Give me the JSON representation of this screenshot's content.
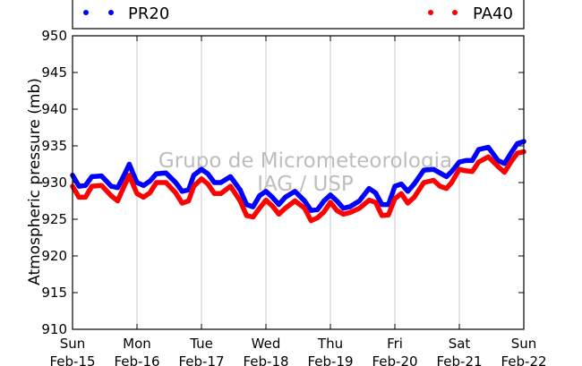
{
  "chart_data": {
    "type": "line",
    "ylabel": "Atmospheric pressure (mb)",
    "ylim": [
      910,
      950
    ],
    "yticks": [
      910,
      915,
      920,
      925,
      930,
      935,
      940,
      945,
      950
    ],
    "xlim": [
      0,
      7
    ],
    "x_ticks": [
      {
        "x": 0,
        "day": "Sun",
        "date": "Feb-15"
      },
      {
        "x": 1,
        "day": "Mon",
        "date": "Feb-16"
      },
      {
        "x": 2,
        "day": "Tue",
        "date": "Feb-17"
      },
      {
        "x": 3,
        "day": "Wed",
        "date": "Feb-18"
      },
      {
        "x": 4,
        "day": "Thu",
        "date": "Feb-19"
      },
      {
        "x": 5,
        "day": "Fri",
        "date": "Feb-20"
      },
      {
        "x": 6,
        "day": "Sat",
        "date": "Feb-21"
      },
      {
        "x": 7,
        "day": "Sun",
        "date": "Feb-22"
      }
    ],
    "grid": "vertical",
    "legend_placement": "top",
    "watermark": [
      "Grupo de Micrometeorologia",
      "IAG / USP"
    ],
    "series": [
      {
        "name": "PR20",
        "color": "#0000ff",
        "x": [
          0,
          0.1,
          0.2,
          0.3,
          0.45,
          0.6,
          0.7,
          0.8,
          0.88,
          0.95,
          1.0,
          1.1,
          1.2,
          1.3,
          1.45,
          1.6,
          1.7,
          1.8,
          1.88,
          2.0,
          2.1,
          2.2,
          2.3,
          2.45,
          2.6,
          2.7,
          2.8,
          2.9,
          3.0,
          3.1,
          3.2,
          3.3,
          3.45,
          3.6,
          3.7,
          3.8,
          3.9,
          4.0,
          4.1,
          4.2,
          4.3,
          4.45,
          4.6,
          4.7,
          4.8,
          4.9,
          5.0,
          5.1,
          5.2,
          5.3,
          5.45,
          5.6,
          5.7,
          5.8,
          5.88,
          6.0,
          6.1,
          6.2,
          6.3,
          6.45,
          6.6,
          6.7,
          6.8,
          6.9,
          7.0
        ],
        "values": [
          931.0,
          929.5,
          929.6,
          930.8,
          930.9,
          929.5,
          929.3,
          931.0,
          932.5,
          931.0,
          930.0,
          929.6,
          930.2,
          931.2,
          931.3,
          930.0,
          928.8,
          929.0,
          931.0,
          931.8,
          931.2,
          930.0,
          930.0,
          930.8,
          929.0,
          927.0,
          926.7,
          928.2,
          928.8,
          928.0,
          927.0,
          928.0,
          928.8,
          927.5,
          926.2,
          926.3,
          927.5,
          928.3,
          927.5,
          926.5,
          926.7,
          927.5,
          929.2,
          928.6,
          927.0,
          927.0,
          929.5,
          929.8,
          928.8,
          929.8,
          931.7,
          931.8,
          931.3,
          930.8,
          931.5,
          932.8,
          933.0,
          933.0,
          934.5,
          934.8,
          933.0,
          932.6,
          934.0,
          935.3,
          935.6
        ]
      },
      {
        "name": "PA40",
        "color": "#ff0000",
        "x": [
          0,
          0.1,
          0.2,
          0.3,
          0.45,
          0.6,
          0.7,
          0.8,
          0.88,
          0.95,
          1.0,
          1.1,
          1.2,
          1.3,
          1.45,
          1.6,
          1.7,
          1.8,
          1.88,
          2.0,
          2.1,
          2.2,
          2.3,
          2.45,
          2.6,
          2.7,
          2.8,
          2.9,
          3.0,
          3.1,
          3.2,
          3.3,
          3.45,
          3.6,
          3.7,
          3.8,
          3.9,
          4.0,
          4.1,
          4.2,
          4.3,
          4.45,
          4.6,
          4.7,
          4.8,
          4.9,
          5.0,
          5.1,
          5.2,
          5.3,
          5.45,
          5.6,
          5.7,
          5.8,
          5.88,
          6.0,
          6.1,
          6.2,
          6.3,
          6.45,
          6.6,
          6.7,
          6.8,
          6.9,
          7.0
        ],
        "values": [
          929.5,
          928.0,
          928.0,
          929.5,
          929.6,
          928.2,
          927.5,
          929.5,
          931.0,
          929.5,
          928.5,
          928.0,
          928.6,
          930.0,
          930.0,
          928.6,
          927.2,
          927.5,
          929.5,
          930.5,
          929.8,
          928.5,
          928.5,
          929.5,
          927.5,
          925.5,
          925.3,
          926.5,
          927.6,
          926.8,
          925.7,
          926.5,
          927.5,
          926.5,
          924.8,
          925.2,
          926.0,
          927.3,
          926.2,
          925.7,
          925.9,
          926.5,
          927.6,
          927.3,
          925.5,
          925.6,
          927.8,
          928.5,
          927.2,
          928.0,
          930.0,
          930.3,
          929.5,
          929.2,
          930.0,
          931.8,
          931.6,
          931.5,
          932.8,
          933.5,
          932.2,
          931.4,
          932.8,
          934.0,
          934.2
        ]
      }
    ]
  }
}
